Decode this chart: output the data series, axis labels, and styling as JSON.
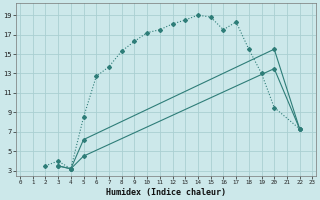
{
  "xlabel": "Humidex (Indice chaleur)",
  "background_color": "#cce8ea",
  "grid_color": "#aacfd2",
  "line_color": "#2e7d78",
  "line1_dotted": {
    "x": [
      2,
      3,
      4,
      5,
      6,
      7,
      8,
      9,
      10,
      11,
      12,
      13,
      14,
      15,
      16,
      17,
      18,
      19,
      20,
      22
    ],
    "y": [
      3.5,
      4.0,
      3.2,
      8.5,
      12.7,
      13.7,
      15.3,
      16.3,
      17.2,
      17.5,
      18.1,
      18.5,
      19.0,
      18.8,
      17.5,
      18.3,
      15.5,
      13.0,
      9.5,
      7.3
    ]
  },
  "line2_solid_upper": {
    "x": [
      3,
      4,
      5,
      20,
      22
    ],
    "y": [
      3.5,
      3.2,
      6.2,
      15.5,
      7.3
    ]
  },
  "line3_solid_lower": {
    "x": [
      3,
      4,
      5,
      20,
      22
    ],
    "y": [
      3.5,
      3.2,
      4.5,
      13.5,
      7.3
    ]
  },
  "xlim": [
    -0.3,
    23.3
  ],
  "ylim": [
    2.5,
    20.2
  ],
  "xticks": [
    0,
    1,
    2,
    3,
    4,
    5,
    6,
    7,
    8,
    9,
    10,
    11,
    12,
    13,
    14,
    15,
    16,
    17,
    18,
    19,
    20,
    21,
    22,
    23
  ],
  "yticks": [
    3,
    5,
    7,
    9,
    11,
    13,
    15,
    17,
    19
  ]
}
